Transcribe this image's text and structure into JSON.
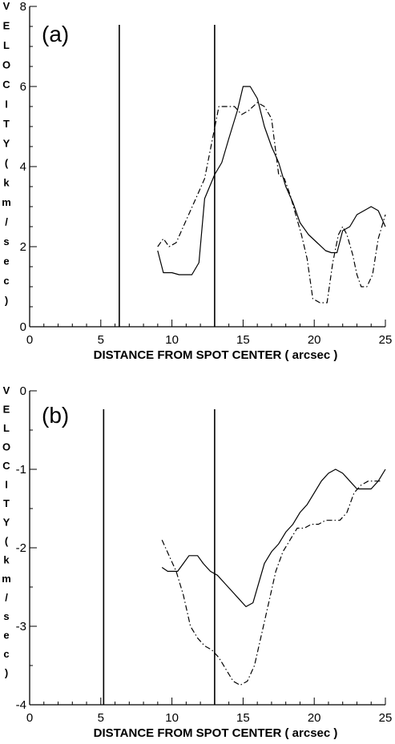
{
  "chart_data": [
    {
      "type": "line",
      "panel_label": "(a)",
      "xlabel": "DISTANCE FROM SPOT CENTER ( arcsec )",
      "ylabel": "VELOCITY (km/sec)",
      "ylabel_chars": [
        "V",
        "E",
        "L",
        "O",
        "C",
        "I",
        "T",
        "Y",
        "(",
        "k",
        "m",
        "/",
        "s",
        "e",
        "c",
        ")"
      ],
      "xlim": [
        0,
        25
      ],
      "ylim": [
        0,
        8
      ],
      "xticks": [
        0,
        5,
        10,
        15,
        20,
        25
      ],
      "yticks": [
        0,
        2,
        4,
        6,
        8
      ],
      "vlines": [
        6.3,
        13.0
      ],
      "series": [
        {
          "style": "solid",
          "x": [
            9.0,
            9.4,
            10.0,
            10.5,
            11.0,
            11.4,
            11.9,
            12.3,
            13.0,
            13.5,
            14.0,
            14.6,
            15.0,
            15.5,
            16.0,
            16.5,
            17.0,
            17.5,
            18.0,
            18.5,
            19.0,
            19.6,
            20.2,
            20.8,
            21.2,
            21.6,
            22.0,
            22.5,
            23.0,
            23.5,
            24.0,
            24.5,
            25.0
          ],
          "y": [
            1.9,
            1.35,
            1.35,
            1.3,
            1.3,
            1.3,
            1.6,
            3.2,
            3.8,
            4.1,
            4.7,
            5.4,
            6.0,
            6.0,
            5.7,
            5.0,
            4.5,
            4.1,
            3.5,
            3.1,
            2.6,
            2.3,
            2.1,
            1.9,
            1.85,
            1.85,
            2.4,
            2.5,
            2.8,
            2.9,
            3.0,
            2.9,
            2.5
          ]
        },
        {
          "style": "dash-dot",
          "x": [
            9.0,
            9.4,
            9.8,
            10.3,
            10.8,
            11.3,
            11.8,
            12.3,
            12.8,
            13.3,
            13.9,
            14.4,
            14.9,
            15.4,
            16.0,
            16.5,
            17.0,
            17.5,
            17.9,
            18.3,
            18.7,
            19.1,
            19.5,
            19.9,
            20.4,
            20.9,
            21.3,
            21.7,
            22.0,
            22.3,
            22.7,
            23.0,
            23.3,
            23.7,
            24.1,
            24.5,
            25.0
          ],
          "y": [
            2.0,
            2.2,
            2.0,
            2.1,
            2.5,
            2.9,
            3.3,
            3.7,
            4.6,
            5.5,
            5.5,
            5.5,
            5.3,
            5.4,
            5.6,
            5.5,
            5.2,
            3.8,
            3.7,
            3.3,
            2.8,
            2.3,
            1.7,
            0.7,
            0.6,
            0.6,
            1.6,
            2.3,
            2.5,
            2.3,
            1.8,
            1.3,
            1.0,
            1.0,
            1.3,
            2.2,
            2.8
          ]
        }
      ]
    },
    {
      "type": "line",
      "panel_label": "(b)",
      "xlabel": "DISTANCE FROM SPOT CENTER ( arcsec )",
      "ylabel": "VELOCITY (km/sec)",
      "ylabel_chars": [
        "V",
        "E",
        "L",
        "O",
        "C",
        "I",
        "T",
        "Y",
        "(",
        "k",
        "m",
        "/",
        "s",
        "e",
        "c",
        ")"
      ],
      "xlim": [
        0,
        25
      ],
      "ylim": [
        -4,
        0
      ],
      "xticks": [
        0,
        5,
        10,
        15,
        20,
        25
      ],
      "yticks": [
        0,
        -1,
        -2,
        -3,
        -4
      ],
      "vlines": [
        5.2,
        13.0
      ],
      "series": [
        {
          "style": "solid",
          "x": [
            9.3,
            9.7,
            10.0,
            10.4,
            10.8,
            11.2,
            11.8,
            12.2,
            12.7,
            13.2,
            13.7,
            14.2,
            14.7,
            15.2,
            15.7,
            16.1,
            16.5,
            17.0,
            17.5,
            18.0,
            18.5,
            19.0,
            19.5,
            20.0,
            20.5,
            21.0,
            21.5,
            22.0,
            22.5,
            23.0,
            23.5,
            24.0,
            24.5,
            25.0
          ],
          "y": [
            -2.25,
            -2.3,
            -2.3,
            -2.3,
            -2.2,
            -2.1,
            -2.1,
            -2.2,
            -2.3,
            -2.35,
            -2.45,
            -2.55,
            -2.65,
            -2.75,
            -2.7,
            -2.45,
            -2.2,
            -2.05,
            -1.95,
            -1.8,
            -1.7,
            -1.55,
            -1.45,
            -1.3,
            -1.15,
            -1.05,
            -1.0,
            -1.05,
            -1.15,
            -1.25,
            -1.25,
            -1.25,
            -1.15,
            -1.0
          ]
        },
        {
          "style": "dash-dot",
          "x": [
            9.3,
            9.8,
            10.3,
            10.8,
            11.3,
            11.8,
            12.3,
            12.8,
            13.3,
            13.8,
            14.3,
            14.8,
            15.3,
            15.8,
            16.3,
            16.8,
            17.3,
            17.8,
            18.3,
            18.8,
            19.3,
            19.8,
            20.3,
            20.8,
            21.3,
            21.8,
            22.3,
            22.8,
            23.3,
            23.8,
            24.3,
            24.8
          ],
          "y": [
            -1.9,
            -2.1,
            -2.3,
            -2.6,
            -3.0,
            -3.15,
            -3.25,
            -3.3,
            -3.4,
            -3.55,
            -3.7,
            -3.75,
            -3.7,
            -3.5,
            -3.1,
            -2.7,
            -2.3,
            -2.05,
            -1.9,
            -1.75,
            -1.75,
            -1.7,
            -1.7,
            -1.65,
            -1.65,
            -1.65,
            -1.55,
            -1.3,
            -1.2,
            -1.15,
            -1.15,
            -1.15
          ]
        }
      ]
    }
  ]
}
